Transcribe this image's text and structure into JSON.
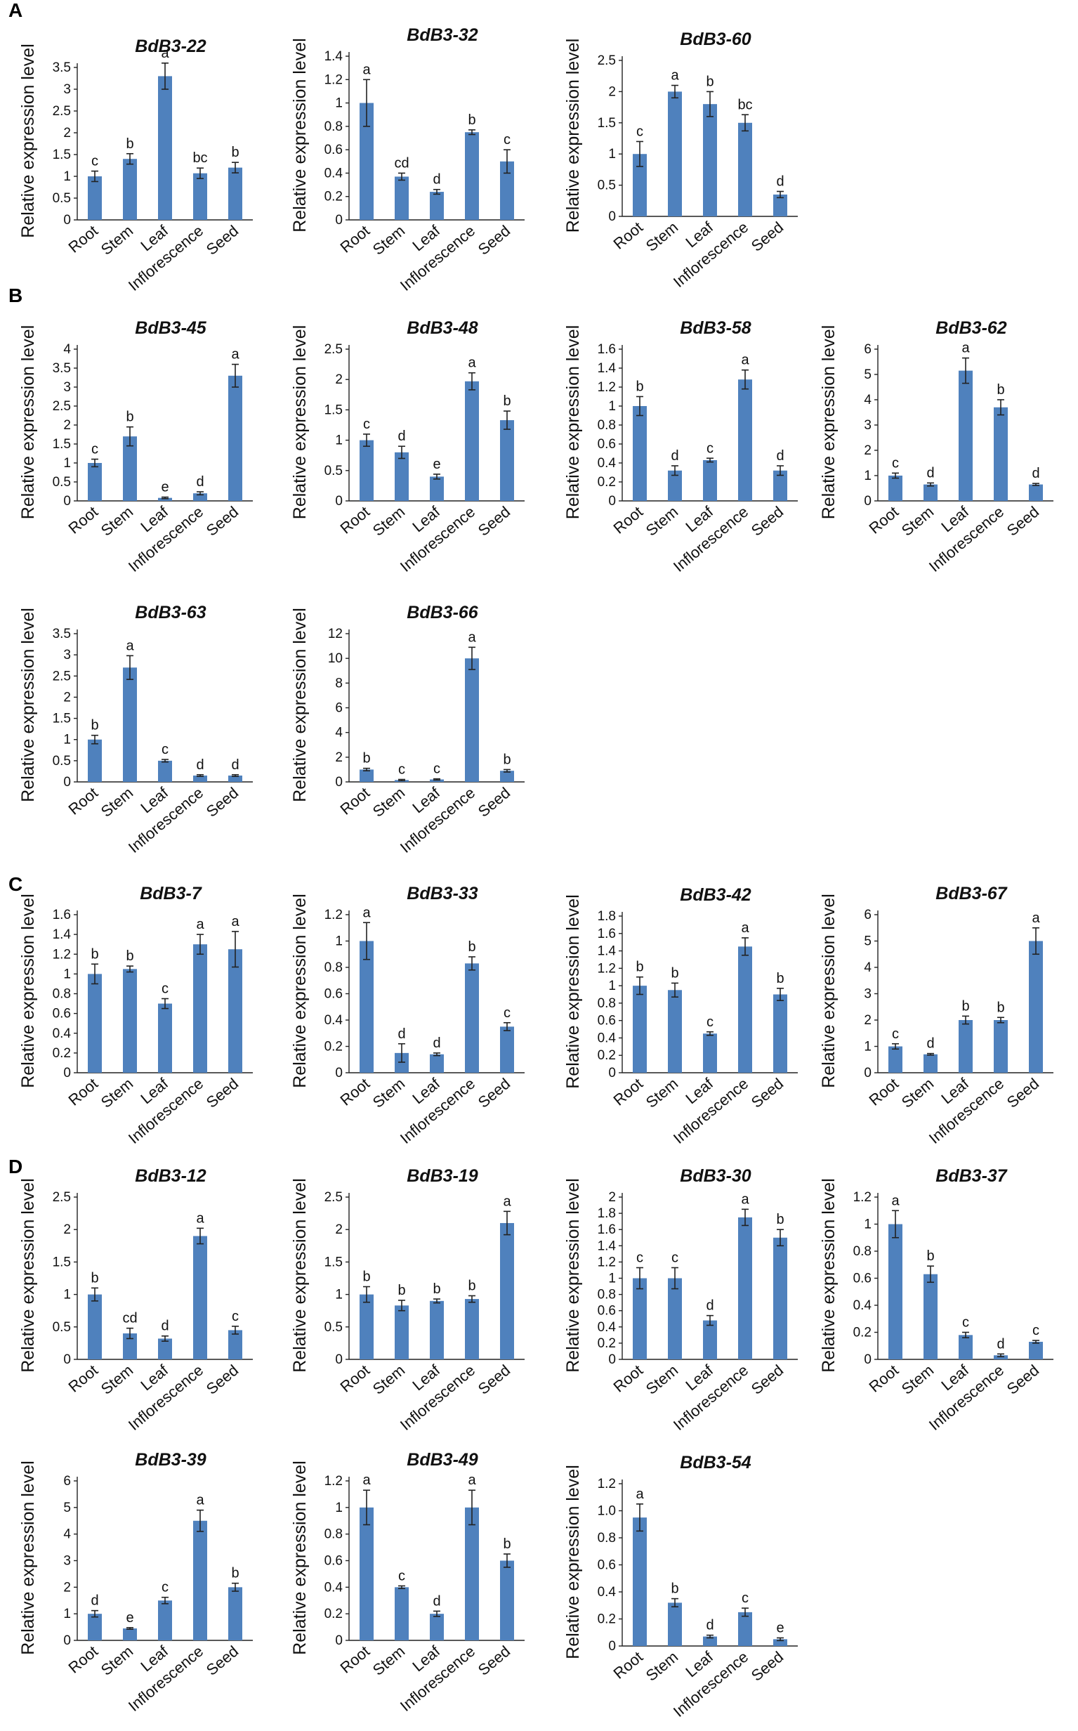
{
  "panels": [
    "A",
    "B",
    "C",
    "D"
  ],
  "chart_data": [
    {
      "panel": "A",
      "type": "bar",
      "title": "BdB3-22",
      "ylabel": "Relative expression level",
      "categories": [
        "Root",
        "Stem",
        "Leaf",
        "Inflorescence",
        "Seed"
      ],
      "values": [
        1.0,
        1.4,
        3.3,
        1.07,
        1.2
      ],
      "errors": [
        0.12,
        0.12,
        0.3,
        0.12,
        0.12
      ],
      "letters": [
        "c",
        "b",
        "a",
        "bc",
        "b"
      ],
      "ylim": [
        0,
        3.5
      ],
      "yticks": [
        "0",
        "0.5",
        "1",
        "1.5",
        "2",
        "2.5",
        "3",
        "3.5"
      ]
    },
    {
      "panel": "A",
      "type": "bar",
      "title": "BdB3-32",
      "ylabel": "Relative expression level",
      "categories": [
        "Root",
        "Stem",
        "Leaf",
        "Inflorescence",
        "Seed"
      ],
      "values": [
        1.0,
        0.37,
        0.24,
        0.75,
        0.5
      ],
      "errors": [
        0.2,
        0.03,
        0.02,
        0.02,
        0.1
      ],
      "letters": [
        "a",
        "cd",
        "d",
        "b",
        "c"
      ],
      "ylim": [
        0,
        1.4
      ],
      "yticks": [
        "0",
        "0.2",
        "0.4",
        "0.6",
        "0.8",
        "1",
        "1.2",
        "1.4"
      ]
    },
    {
      "panel": "A",
      "type": "bar",
      "title": "BdB3-60",
      "ylabel": "Relative expression level",
      "categories": [
        "Root",
        "Stem",
        "Leaf",
        "Inflorescence",
        "Seed"
      ],
      "values": [
        1.0,
        2.0,
        1.8,
        1.5,
        0.35
      ],
      "errors": [
        0.2,
        0.1,
        0.2,
        0.13,
        0.05
      ],
      "letters": [
        "c",
        "a",
        "b",
        "bc",
        "d"
      ],
      "ylim": [
        0,
        2.5
      ],
      "yticks": [
        "0",
        "0.5",
        "1",
        "1.5",
        "2",
        "2.5"
      ]
    },
    {
      "panel": "B",
      "type": "bar",
      "title": "BdB3-45",
      "ylabel": "Relative expression level",
      "categories": [
        "Root",
        "Stem",
        "Leaf",
        "Inflorescence",
        "Seed"
      ],
      "values": [
        1.0,
        1.7,
        0.08,
        0.2,
        3.3
      ],
      "errors": [
        0.1,
        0.25,
        0.02,
        0.04,
        0.3
      ],
      "letters": [
        "c",
        "b",
        "e",
        "d",
        "a"
      ],
      "ylim": [
        0,
        4
      ],
      "yticks": [
        "0",
        "0.5",
        "1",
        "1.5",
        "2",
        "2.5",
        "3",
        "3.5",
        "4"
      ]
    },
    {
      "panel": "B",
      "type": "bar",
      "title": "BdB3-48",
      "ylabel": "Relative expression level",
      "categories": [
        "Root",
        "Stem",
        "Leaf",
        "Inflorescence",
        "Seed"
      ],
      "values": [
        1.0,
        0.8,
        0.4,
        1.97,
        1.33
      ],
      "errors": [
        0.1,
        0.1,
        0.04,
        0.14,
        0.15
      ],
      "letters": [
        "c",
        "d",
        "e",
        "a",
        "b"
      ],
      "ylim": [
        0,
        2.5
      ],
      "yticks": [
        "0",
        "0.5",
        "1",
        "1.5",
        "2",
        "2.5"
      ]
    },
    {
      "panel": "B",
      "type": "bar",
      "title": "BdB3-58",
      "ylabel": "Relative expression level",
      "categories": [
        "Root",
        "Stem",
        "Leaf",
        "Inflorescence",
        "Seed"
      ],
      "values": [
        1.0,
        0.32,
        0.43,
        1.28,
        0.32
      ],
      "errors": [
        0.1,
        0.05,
        0.02,
        0.1,
        0.05
      ],
      "letters": [
        "b",
        "d",
        "c",
        "a",
        "d"
      ],
      "ylim": [
        0,
        1.6
      ],
      "yticks": [
        "0",
        "0.2",
        "0.4",
        "0.6",
        "0.8",
        "1",
        "1.2",
        "1.4",
        "1.6"
      ]
    },
    {
      "panel": "B",
      "type": "bar",
      "title": "BdB3-62",
      "ylabel": "Relative expression level",
      "categories": [
        "Root",
        "Stem",
        "Leaf",
        "Inflorescence",
        "Seed"
      ],
      "values": [
        1.0,
        0.65,
        5.15,
        3.7,
        0.65
      ],
      "errors": [
        0.1,
        0.06,
        0.5,
        0.3,
        0.04
      ],
      "letters": [
        "c",
        "d",
        "a",
        "b",
        "d"
      ],
      "ylim": [
        0,
        6
      ],
      "yticks": [
        "0",
        "1",
        "2",
        "3",
        "4",
        "5",
        "6"
      ]
    },
    {
      "panel": "B",
      "type": "bar",
      "title": "BdB3-63",
      "ylabel": "Relative expression level",
      "categories": [
        "Root",
        "Stem",
        "Leaf",
        "Inflorescence",
        "Seed"
      ],
      "values": [
        1.0,
        2.7,
        0.5,
        0.15,
        0.15
      ],
      "errors": [
        0.1,
        0.28,
        0.03,
        0.02,
        0.02
      ],
      "letters": [
        "b",
        "a",
        "c",
        "d",
        "d"
      ],
      "ylim": [
        0,
        3.5
      ],
      "yticks": [
        "0",
        "0.5",
        "1",
        "1.5",
        "2",
        "2.5",
        "3",
        "3.5"
      ]
    },
    {
      "panel": "B",
      "type": "bar",
      "title": "BdB3-66",
      "ylabel": "Relative expression level",
      "categories": [
        "Root",
        "Stem",
        "Leaf",
        "Inflorescence",
        "Seed"
      ],
      "values": [
        1.0,
        0.15,
        0.2,
        10.0,
        0.9
      ],
      "errors": [
        0.1,
        0.05,
        0.05,
        0.9,
        0.1
      ],
      "letters": [
        "b",
        "c",
        "c",
        "a",
        "b"
      ],
      "ylim": [
        0,
        12
      ],
      "yticks": [
        "0",
        "2",
        "4",
        "6",
        "8",
        "10",
        "12"
      ]
    },
    {
      "panel": "C",
      "type": "bar",
      "title": "BdB3-7",
      "ylabel": "Relative expression level",
      "categories": [
        "Root",
        "Stem",
        "Leaf",
        "Inflorescence",
        "Seed"
      ],
      "values": [
        1.0,
        1.05,
        0.7,
        1.3,
        1.25
      ],
      "errors": [
        0.1,
        0.03,
        0.05,
        0.1,
        0.18
      ],
      "letters": [
        "b",
        "b",
        "c",
        "a",
        "a"
      ],
      "ylim": [
        0,
        1.6
      ],
      "yticks": [
        "0",
        "0.2",
        "0.4",
        "0.6",
        "0.8",
        "1",
        "1.2",
        "1.4",
        "1.6"
      ]
    },
    {
      "panel": "C",
      "type": "bar",
      "title": "BdB3-33",
      "ylabel": "Relative expression level",
      "categories": [
        "Root",
        "Stem",
        "Leaf",
        "Inflorescence",
        "Seed"
      ],
      "values": [
        1.0,
        0.15,
        0.14,
        0.83,
        0.35
      ],
      "errors": [
        0.14,
        0.07,
        0.01,
        0.05,
        0.03
      ],
      "letters": [
        "a",
        "d",
        "d",
        "b",
        "c"
      ],
      "ylim": [
        0,
        1.2
      ],
      "yticks": [
        "0",
        "0.2",
        "0.4",
        "0.6",
        "0.8",
        "1",
        "1.2"
      ]
    },
    {
      "panel": "C",
      "type": "bar",
      "title": "BdB3-42",
      "ylabel": "Relative expression level",
      "categories": [
        "Root",
        "Stem",
        "Leaf",
        "Inflorescence",
        "Seed"
      ],
      "values": [
        1.0,
        0.95,
        0.45,
        1.45,
        0.9
      ],
      "errors": [
        0.1,
        0.08,
        0.02,
        0.1,
        0.07
      ],
      "letters": [
        "b",
        "b",
        "c",
        "a",
        "b"
      ],
      "ylim": [
        0,
        1.8
      ],
      "yticks": [
        "0",
        "0.2",
        "0.4",
        "0.6",
        "0.8",
        "1",
        "1.2",
        "1.4",
        "1.6",
        "1.8"
      ]
    },
    {
      "panel": "C",
      "type": "bar",
      "title": "BdB3-67",
      "ylabel": "Relative expression level",
      "categories": [
        "Root",
        "Stem",
        "Leaf",
        "Inflorescence",
        "Seed"
      ],
      "values": [
        1.0,
        0.7,
        2.0,
        2.0,
        5.0
      ],
      "errors": [
        0.1,
        0.03,
        0.15,
        0.1,
        0.5
      ],
      "letters": [
        "c",
        "d",
        "b",
        "b",
        "a"
      ],
      "ylim": [
        0,
        6
      ],
      "yticks": [
        "0",
        "1",
        "2",
        "3",
        "4",
        "5",
        "6"
      ]
    },
    {
      "panel": "D",
      "type": "bar",
      "title": "BdB3-12",
      "ylabel": "Relative expression level",
      "categories": [
        "Root",
        "Stem",
        "Leaf",
        "Inflorescence",
        "Seed"
      ],
      "values": [
        1.0,
        0.4,
        0.32,
        1.9,
        0.45
      ],
      "errors": [
        0.1,
        0.08,
        0.04,
        0.12,
        0.06
      ],
      "letters": [
        "b",
        "cd",
        "d",
        "a",
        "c"
      ],
      "ylim": [
        0,
        2.5
      ],
      "yticks": [
        "0",
        "0.5",
        "1",
        "1.5",
        "2",
        "2.5"
      ]
    },
    {
      "panel": "D",
      "type": "bar",
      "title": "BdB3-19",
      "ylabel": "Relative expression level",
      "categories": [
        "Root",
        "Stem",
        "Leaf",
        "Inflorescence",
        "Seed"
      ],
      "values": [
        1.0,
        0.83,
        0.9,
        0.93,
        2.1
      ],
      "errors": [
        0.12,
        0.08,
        0.03,
        0.05,
        0.18
      ],
      "letters": [
        "b",
        "b",
        "b",
        "b",
        "a"
      ],
      "ylim": [
        0,
        2.5
      ],
      "yticks": [
        "0",
        "0.5",
        "1",
        "1.5",
        "2",
        "2.5"
      ]
    },
    {
      "panel": "D",
      "type": "bar",
      "title": "BdB3-30",
      "ylabel": "Relative expression level",
      "categories": [
        "Root",
        "Stem",
        "Leaf",
        "Inflorescence",
        "Seed"
      ],
      "values": [
        1.0,
        1.0,
        0.48,
        1.75,
        1.5
      ],
      "errors": [
        0.13,
        0.13,
        0.06,
        0.1,
        0.1
      ],
      "letters": [
        "c",
        "c",
        "d",
        "a",
        "b"
      ],
      "ylim": [
        0,
        2
      ],
      "yticks": [
        "0",
        "0.2",
        "0.4",
        "0.6",
        "0.8",
        "1",
        "1.2",
        "1.4",
        "1.6",
        "1.8",
        "2"
      ]
    },
    {
      "panel": "D",
      "type": "bar",
      "title": "BdB3-37",
      "ylabel": "Relative expression level",
      "categories": [
        "Root",
        "Stem",
        "Leaf",
        "Inflorescence",
        "Seed"
      ],
      "values": [
        1.0,
        0.63,
        0.18,
        0.03,
        0.13
      ],
      "errors": [
        0.1,
        0.06,
        0.02,
        0.01,
        0.01
      ],
      "letters": [
        "a",
        "b",
        "c",
        "d",
        "c"
      ],
      "ylim": [
        0,
        1.2
      ],
      "yticks": [
        "0",
        "0.2",
        "0.4",
        "0.6",
        "0.8",
        "1",
        "1.2"
      ]
    },
    {
      "panel": "D",
      "type": "bar",
      "title": "BdB3-39",
      "ylabel": "Relative expression level",
      "categories": [
        "Root",
        "Stem",
        "Leaf",
        "Inflorescence",
        "Seed"
      ],
      "values": [
        1.0,
        0.45,
        1.5,
        4.5,
        2.0
      ],
      "errors": [
        0.12,
        0.03,
        0.12,
        0.4,
        0.15
      ],
      "letters": [
        "d",
        "e",
        "c",
        "a",
        "b"
      ],
      "ylim": [
        0,
        6
      ],
      "yticks": [
        "0",
        "1",
        "2",
        "3",
        "4",
        "5",
        "6"
      ]
    },
    {
      "panel": "D",
      "type": "bar",
      "title": "BdB3-49",
      "ylabel": "Relative expression level",
      "categories": [
        "Root",
        "Stem",
        "Leaf",
        "Inflorescence",
        "Seed"
      ],
      "values": [
        1.0,
        0.4,
        0.2,
        1.0,
        0.6
      ],
      "errors": [
        0.13,
        0.01,
        0.02,
        0.13,
        0.05
      ],
      "letters": [
        "a",
        "c",
        "d",
        "a",
        "b"
      ],
      "ylim": [
        0,
        1.2
      ],
      "yticks": [
        "0",
        "0.2",
        "0.4",
        "0.6",
        "0.8",
        "1",
        "1.2"
      ]
    },
    {
      "panel": "D",
      "type": "bar",
      "title": "BdB3-54",
      "ylabel": "Relative expression level",
      "categories": [
        "Root",
        "Stem",
        "Leaf",
        "Inflorescence",
        "Seed"
      ],
      "values": [
        0.95,
        0.32,
        0.07,
        0.25,
        0.05
      ],
      "errors": [
        0.1,
        0.03,
        0.01,
        0.03,
        0.01
      ],
      "letters": [
        "a",
        "b",
        "d",
        "c",
        "e"
      ],
      "ylim": [
        0,
        1.2
      ],
      "yticks": [
        "0",
        "0.2",
        "0.4",
        "0.6",
        "0.8",
        "1.0",
        "1.2"
      ]
    }
  ]
}
